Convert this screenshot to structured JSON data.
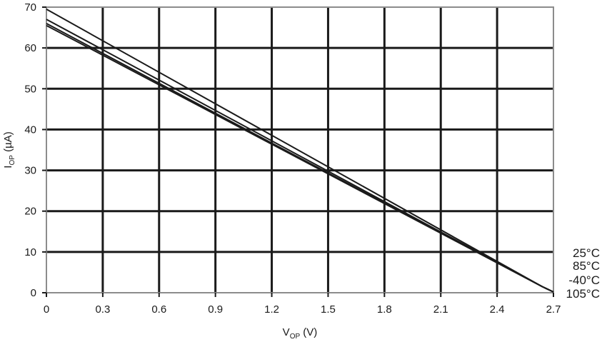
{
  "chart_data": {
    "type": "line",
    "title": "",
    "xlabel": {
      "main": "V",
      "sub": "OP",
      "unit": " (V)"
    },
    "ylabel": {
      "main": "I",
      "sub": "OP",
      "unit": " (µA)"
    },
    "xlim": [
      0,
      2.7
    ],
    "ylim": [
      0,
      70
    ],
    "x_ticks": [
      0,
      0.3,
      0.6,
      0.9,
      1.2,
      1.5,
      1.8,
      2.1,
      2.4,
      2.7
    ],
    "x_tick_labels": [
      "0",
      "0.3",
      "0.6",
      "0.9",
      "1.2",
      "1.5",
      "1.8",
      "2.1",
      "2.4",
      "2.7"
    ],
    "y_ticks": [
      0,
      10,
      20,
      30,
      40,
      50,
      60,
      70
    ],
    "y_tick_labels": [
      "0",
      "10",
      "20",
      "30",
      "40",
      "50",
      "60",
      "70"
    ],
    "grid": true,
    "legend_placement": "right",
    "series": [
      {
        "name": "25°C",
        "color": "#1a1a1a",
        "x": [
          0,
          2.64,
          2.7
        ],
        "y": [
          69.5,
          1.5,
          0.2
        ]
      },
      {
        "name": "85°C",
        "color": "#1a1a1a",
        "x": [
          0,
          2.64,
          2.7
        ],
        "y": [
          67.0,
          1.5,
          0.2
        ]
      },
      {
        "name": "-40°C",
        "color": "#1a1a1a",
        "x": [
          0,
          2.64,
          2.7
        ],
        "y": [
          66.0,
          1.5,
          0.2
        ]
      },
      {
        "name": "105°C",
        "color": "#1a1a1a",
        "x": [
          0,
          2.64,
          2.7
        ],
        "y": [
          65.5,
          1.5,
          0.2
        ]
      }
    ]
  }
}
